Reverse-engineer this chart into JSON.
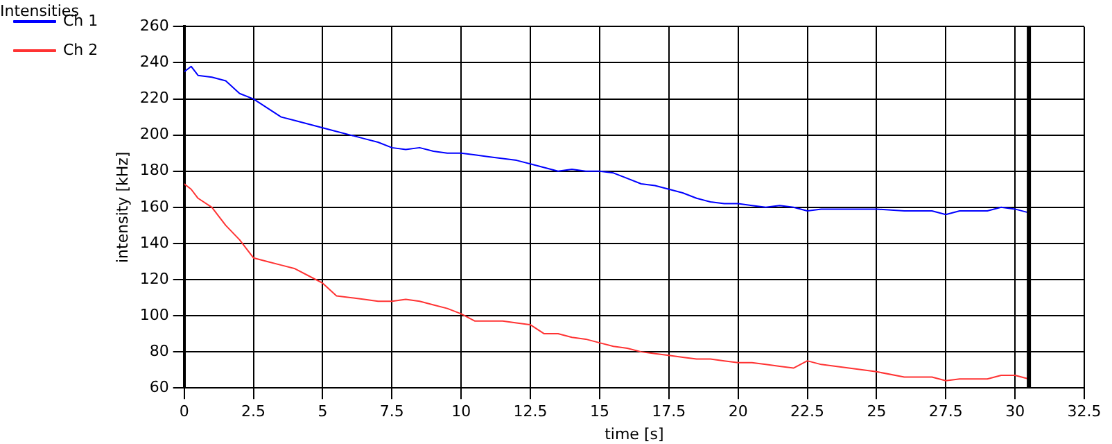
{
  "chart_data": {
    "type": "line",
    "title": "Intensities",
    "xlabel": "time [s]",
    "ylabel": "intensity [kHz]",
    "x": [
      0,
      0.25,
      0.5,
      1,
      1.5,
      2,
      2.5,
      3,
      3.5,
      4,
      4.5,
      5,
      5.5,
      6,
      6.5,
      7,
      7.5,
      8,
      8.5,
      9,
      9.5,
      10,
      10.5,
      11,
      11.5,
      12,
      12.5,
      13,
      13.5,
      14,
      14.5,
      15,
      15.5,
      16,
      16.5,
      17,
      17.5,
      18,
      18.5,
      19,
      19.5,
      20,
      20.5,
      21,
      21.5,
      22,
      22.5,
      23,
      24,
      25,
      26,
      27,
      27.5,
      28,
      29,
      29.5,
      30,
      30.5
    ],
    "series": [
      {
        "name": "Ch 1",
        "color": "#0000ff",
        "values": [
          235,
          238,
          233,
          232,
          230,
          223,
          220,
          215,
          210,
          208,
          206,
          204,
          202,
          200,
          198,
          196,
          193,
          192,
          193,
          191,
          190,
          190,
          189,
          188,
          187,
          186,
          184,
          182,
          180,
          181,
          180,
          180,
          179,
          176,
          173,
          172,
          170,
          168,
          165,
          163,
          162,
          162,
          161,
          160,
          161,
          160,
          158,
          159,
          159,
          159,
          158,
          158,
          156,
          158,
          158,
          160,
          159,
          157
        ]
      },
      {
        "name": "Ch 2",
        "color": "#ff3333",
        "values": [
          173,
          170,
          165,
          160,
          150,
          142,
          132,
          130,
          128,
          126,
          122,
          118,
          111,
          110,
          109,
          108,
          108,
          109,
          108,
          106,
          104,
          101,
          97,
          97,
          97,
          96,
          95,
          90,
          90,
          88,
          87,
          85,
          83,
          82,
          80,
          79,
          78,
          77,
          76,
          76,
          75,
          74,
          74,
          73,
          72,
          71,
          75,
          73,
          71,
          69,
          66,
          66,
          64,
          65,
          65,
          67,
          67,
          65
        ]
      }
    ],
    "xlim": [
      0,
      32.5
    ],
    "xticks": [
      0,
      2.5,
      5,
      7.5,
      10,
      12.5,
      15,
      17.5,
      20,
      22.5,
      25,
      27.5,
      30,
      32.5
    ],
    "ylim": [
      60,
      260
    ],
    "yticks": [
      60,
      80,
      100,
      120,
      140,
      160,
      180,
      200,
      220,
      240,
      260
    ],
    "grid": true,
    "legend": "top left",
    "marker": "none",
    "line_style": "solid",
    "ref_lines": [
      {
        "axis": "x",
        "value": 30.5,
        "color": "#000000"
      }
    ]
  }
}
